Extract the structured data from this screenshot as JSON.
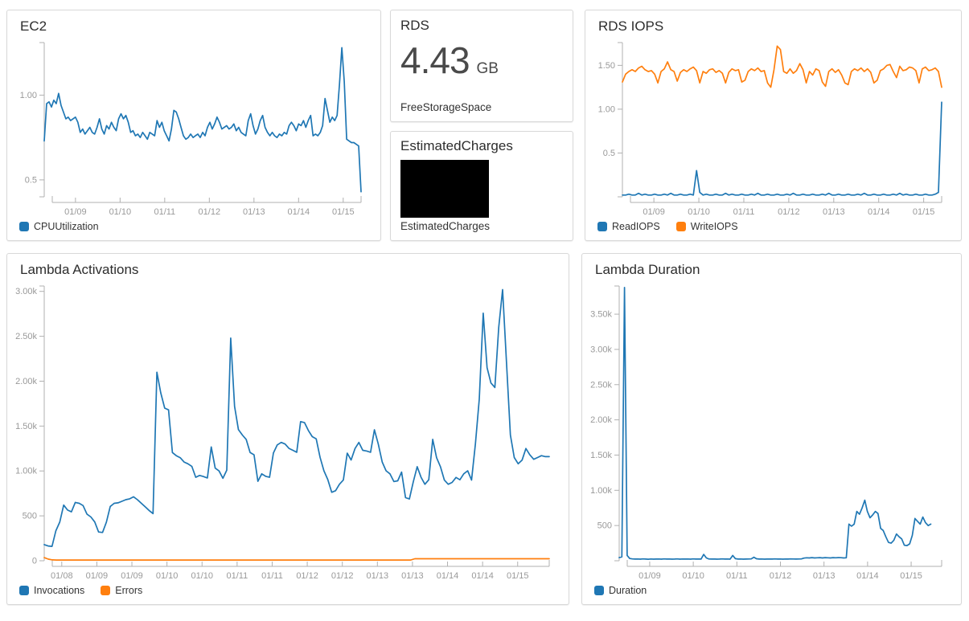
{
  "colors": {
    "blue": "#1f77b4",
    "orange": "#ff7f0e",
    "axis": "#b0b0b0",
    "tick_label": "#999999",
    "title": "#2d2d2d",
    "card_border": "#d8d8d8",
    "redacted_box": "#000000"
  },
  "cards": {
    "rds_metric": {
      "title": "RDS",
      "value": "4.43",
      "unit": "GB",
      "label": "FreeStorageSpace"
    },
    "estimated_charges": {
      "title": "EstimatedCharges",
      "label": "EstimatedCharges"
    }
  },
  "chart_data": [
    {
      "id": "ec2",
      "type": "line",
      "title": "EC2",
      "xlabel": "",
      "ylabel": "",
      "grid": false,
      "legend_position": "bottom-left",
      "x_domain": [
        0.3,
        7.4
      ],
      "ylim": [
        0.4,
        1.31
      ],
      "y_ticks": [
        {
          "v": 0.5,
          "label": "0.5"
        },
        {
          "v": 1.0,
          "label": "1.00"
        }
      ],
      "x_ticks": [
        {
          "v": 1,
          "label": "01/09"
        },
        {
          "v": 2,
          "label": "01/10"
        },
        {
          "v": 3,
          "label": "01/11"
        },
        {
          "v": 4,
          "label": "01/12"
        },
        {
          "v": 5,
          "label": "01/13"
        },
        {
          "v": 6,
          "label": "01/14"
        },
        {
          "v": 7,
          "label": "01/15"
        }
      ],
      "series": [
        {
          "name": "CPUUtilization",
          "color": "#1f77b4",
          "values": [
            0.73,
            0.95,
            0.96,
            0.93,
            0.97,
            0.95,
            1.01,
            0.94,
            0.9,
            0.86,
            0.87,
            0.85,
            0.86,
            0.87,
            0.84,
            0.78,
            0.8,
            0.77,
            0.79,
            0.81,
            0.78,
            0.77,
            0.81,
            0.86,
            0.8,
            0.77,
            0.82,
            0.8,
            0.84,
            0.81,
            0.79,
            0.86,
            0.89,
            0.86,
            0.88,
            0.84,
            0.78,
            0.79,
            0.76,
            0.77,
            0.75,
            0.78,
            0.76,
            0.74,
            0.78,
            0.77,
            0.76,
            0.85,
            0.81,
            0.84,
            0.79,
            0.76,
            0.73,
            0.8,
            0.91,
            0.9,
            0.86,
            0.81,
            0.76,
            0.74,
            0.75,
            0.77,
            0.75,
            0.76,
            0.77,
            0.75,
            0.78,
            0.76,
            0.81,
            0.84,
            0.8,
            0.83,
            0.87,
            0.84,
            0.8,
            0.81,
            0.82,
            0.8,
            0.81,
            0.83,
            0.79,
            0.81,
            0.78,
            0.77,
            0.76,
            0.85,
            0.89,
            0.82,
            0.77,
            0.8,
            0.85,
            0.88,
            0.81,
            0.78,
            0.76,
            0.78,
            0.76,
            0.75,
            0.77,
            0.76,
            0.78,
            0.77,
            0.82,
            0.84,
            0.82,
            0.79,
            0.83,
            0.82,
            0.85,
            0.81,
            0.85,
            0.88,
            0.76,
            0.77,
            0.76,
            0.78,
            0.82,
            0.98,
            0.91,
            0.84,
            0.87,
            0.85,
            0.88,
            1.06,
            1.28,
            1.08,
            0.74,
            0.73,
            0.72,
            0.72,
            0.71,
            0.7,
            0.43
          ]
        }
      ]
    },
    {
      "id": "rds_iops",
      "type": "line",
      "title": "RDS IOPS",
      "xlabel": "",
      "ylabel": "",
      "grid": false,
      "legend_position": "bottom-left",
      "x_domain": [
        0.3,
        7.4
      ],
      "ylim": [
        0,
        1.76
      ],
      "y_ticks": [
        {
          "v": 0.5,
          "label": "0.5"
        },
        {
          "v": 1.0,
          "label": "1.00"
        },
        {
          "v": 1.5,
          "label": "1.50"
        }
      ],
      "x_ticks": [
        {
          "v": 1,
          "label": "01/09"
        },
        {
          "v": 2,
          "label": "01/10"
        },
        {
          "v": 3,
          "label": "01/11"
        },
        {
          "v": 4,
          "label": "01/12"
        },
        {
          "v": 5,
          "label": "01/13"
        },
        {
          "v": 6,
          "label": "01/14"
        },
        {
          "v": 7,
          "label": "01/15"
        }
      ],
      "series": [
        {
          "name": "ReadIOPS",
          "color": "#1f77b4",
          "values": [
            0.02,
            0.02,
            0.03,
            0.02,
            0.02,
            0.04,
            0.02,
            0.03,
            0.02,
            0.02,
            0.03,
            0.02,
            0.02,
            0.03,
            0.02,
            0.04,
            0.02,
            0.02,
            0.03,
            0.02,
            0.02,
            0.03,
            0.02,
            0.3,
            0.05,
            0.02,
            0.03,
            0.02,
            0.02,
            0.03,
            0.02,
            0.02,
            0.04,
            0.02,
            0.03,
            0.02,
            0.02,
            0.03,
            0.02,
            0.02,
            0.03,
            0.02,
            0.04,
            0.02,
            0.02,
            0.03,
            0.02,
            0.02,
            0.03,
            0.02,
            0.02,
            0.03,
            0.02,
            0.04,
            0.02,
            0.02,
            0.03,
            0.02,
            0.02,
            0.03,
            0.02,
            0.02,
            0.03,
            0.02,
            0.04,
            0.02,
            0.02,
            0.03,
            0.02,
            0.02,
            0.03,
            0.02,
            0.02,
            0.03,
            0.02,
            0.04,
            0.02,
            0.02,
            0.03,
            0.02,
            0.02,
            0.03,
            0.02,
            0.02,
            0.03,
            0.02,
            0.04,
            0.02,
            0.03,
            0.02,
            0.02,
            0.03,
            0.02,
            0.02,
            0.03,
            0.02,
            0.02,
            0.03,
            0.05,
            1.08
          ]
        },
        {
          "name": "WriteIOPS",
          "color": "#ff7f0e",
          "values": [
            1.31,
            1.4,
            1.43,
            1.45,
            1.43,
            1.47,
            1.49,
            1.45,
            1.43,
            1.44,
            1.4,
            1.3,
            1.43,
            1.46,
            1.54,
            1.45,
            1.43,
            1.32,
            1.42,
            1.45,
            1.43,
            1.46,
            1.48,
            1.44,
            1.3,
            1.43,
            1.41,
            1.45,
            1.46,
            1.42,
            1.44,
            1.41,
            1.3,
            1.42,
            1.46,
            1.44,
            1.45,
            1.31,
            1.33,
            1.43,
            1.46,
            1.44,
            1.47,
            1.43,
            1.44,
            1.3,
            1.25,
            1.45,
            1.72,
            1.68,
            1.43,
            1.41,
            1.46,
            1.41,
            1.44,
            1.52,
            1.45,
            1.3,
            1.43,
            1.39,
            1.46,
            1.44,
            1.31,
            1.26,
            1.43,
            1.46,
            1.42,
            1.45,
            1.39,
            1.3,
            1.28,
            1.43,
            1.46,
            1.44,
            1.47,
            1.43,
            1.46,
            1.42,
            1.3,
            1.33,
            1.44,
            1.46,
            1.5,
            1.51,
            1.43,
            1.36,
            1.49,
            1.44,
            1.45,
            1.48,
            1.47,
            1.44,
            1.3,
            1.46,
            1.48,
            1.44,
            1.45,
            1.47,
            1.43,
            1.25
          ]
        }
      ]
    },
    {
      "id": "lambda_activations",
      "type": "line",
      "title": "Lambda Activations",
      "xlabel": "",
      "ylabel": "",
      "grid": false,
      "legend_position": "bottom-left",
      "x_domain": [
        0.25,
        7.45
      ],
      "ylim": [
        0,
        3060
      ],
      "y_ticks": [
        {
          "v": 0,
          "label": "0"
        },
        {
          "v": 500,
          "label": "500"
        },
        {
          "v": 1000,
          "label": "1.00k"
        },
        {
          "v": 1500,
          "label": "1.50k"
        },
        {
          "v": 2000,
          "label": "2.00k"
        },
        {
          "v": 2500,
          "label": "2.50k"
        },
        {
          "v": 3000,
          "label": "3.00k"
        }
      ],
      "x_ticks": [
        {
          "v": 0.5,
          "label": "01/08"
        },
        {
          "v": 1.0,
          "label": "01/09"
        },
        {
          "v": 1.5,
          "label": "01/09"
        },
        {
          "v": 2.0,
          "label": "01/10"
        },
        {
          "v": 2.5,
          "label": "01/10"
        },
        {
          "v": 3.0,
          "label": "01/11"
        },
        {
          "v": 3.5,
          "label": "01/11"
        },
        {
          "v": 4.0,
          "label": "01/12"
        },
        {
          "v": 4.5,
          "label": "01/12"
        },
        {
          "v": 5.0,
          "label": "01/13"
        },
        {
          "v": 5.5,
          "label": "01/13"
        },
        {
          "v": 6.0,
          "label": "01/14"
        },
        {
          "v": 6.5,
          "label": "01/14"
        },
        {
          "v": 7.0,
          "label": "01/15"
        }
      ],
      "series": [
        {
          "name": "Invocations",
          "color": "#1f77b4",
          "values": [
            180,
            165,
            160,
            335,
            430,
            620,
            565,
            545,
            650,
            640,
            615,
            520,
            488,
            432,
            320,
            315,
            430,
            605,
            640,
            645,
            662,
            680,
            690,
            712,
            680,
            640,
            600,
            560,
            525,
            2100,
            1870,
            1700,
            1680,
            1205,
            1170,
            1148,
            1100,
            1080,
            1050,
            930,
            950,
            938,
            922,
            1268,
            1032,
            1000,
            918,
            1008,
            2480,
            1720,
            1460,
            1400,
            1350,
            1205,
            1180,
            885,
            968,
            940,
            930,
            1200,
            1290,
            1318,
            1300,
            1252,
            1230,
            1208,
            1550,
            1538,
            1450,
            1382,
            1358,
            1152,
            1002,
            905,
            762,
            780,
            852,
            900,
            1198,
            1122,
            1250,
            1318,
            1230,
            1222,
            1208,
            1458,
            1300,
            1100,
            1002,
            968,
            882,
            890,
            988,
            702,
            688,
            878,
            1048,
            930,
            852,
            902,
            1352,
            1148,
            1048,
            898,
            852,
            872,
            928,
            902,
            968,
            1002,
            898,
            1302,
            1800,
            2758,
            2150,
            1980,
            1930,
            2600,
            3020,
            2200,
            1400,
            1150,
            1080,
            1120,
            1250,
            1180,
            1130,
            1150,
            1170,
            1160,
            1160
          ]
        },
        {
          "name": "Errors",
          "color": "#ff7f0e",
          "values": [
            35,
            18,
            10,
            8,
            8,
            8,
            8,
            8,
            8,
            8,
            8,
            8,
            8,
            8,
            8,
            8,
            8,
            8,
            8,
            8,
            8,
            8,
            8,
            8,
            8,
            8,
            8,
            8,
            8,
            8,
            8,
            8,
            8,
            8,
            8,
            8,
            8,
            8,
            8,
            8,
            8,
            8,
            8,
            8,
            8,
            8,
            8,
            8,
            8,
            8,
            8,
            8,
            8,
            8,
            8,
            8,
            8,
            8,
            8,
            8,
            8,
            8,
            8,
            8,
            8,
            8,
            8,
            8,
            8,
            8,
            8,
            8,
            8,
            8,
            8,
            8,
            8,
            8,
            8,
            8,
            8,
            8,
            8,
            8,
            8,
            8,
            8,
            8,
            8,
            8,
            8,
            22,
            22,
            22,
            22,
            22,
            22,
            22,
            22,
            22,
            22,
            22,
            22,
            22,
            22,
            22,
            22,
            22,
            22,
            22,
            22,
            22,
            22,
            22,
            22,
            22,
            22,
            22,
            22,
            22,
            22,
            22,
            22,
            22,
            22
          ]
        }
      ]
    },
    {
      "id": "lambda_duration",
      "type": "line",
      "title": "Lambda Duration",
      "xlabel": "",
      "ylabel": "",
      "grid": false,
      "legend_position": "bottom-left",
      "x_domain": [
        0.3,
        7.7
      ],
      "ylim": [
        0,
        3900
      ],
      "y_ticks": [
        {
          "v": 500,
          "label": "500"
        },
        {
          "v": 1000,
          "label": "1.00k"
        },
        {
          "v": 1500,
          "label": "1.50k"
        },
        {
          "v": 2000,
          "label": "2.00k"
        },
        {
          "v": 2500,
          "label": "2.50k"
        },
        {
          "v": 3000,
          "label": "3.00k"
        },
        {
          "v": 3500,
          "label": "3.50k"
        }
      ],
      "x_ticks": [
        {
          "v": 1,
          "label": "01/09"
        },
        {
          "v": 2,
          "label": "01/10"
        },
        {
          "v": 3,
          "label": "01/11"
        },
        {
          "v": 4,
          "label": "01/12"
        },
        {
          "v": 5,
          "label": "01/13"
        },
        {
          "v": 6,
          "label": "01/14"
        },
        {
          "v": 7,
          "label": "01/15"
        }
      ],
      "series": [
        {
          "name": "Duration",
          "color": "#1f77b4",
          "x_start": 0.3,
          "x_end": 7.45,
          "values": [
            45,
            55,
            3880,
            75,
            32,
            26,
            24,
            25,
            23,
            26,
            24,
            22,
            25,
            23,
            24,
            25,
            23,
            26,
            24,
            25,
            23,
            24,
            26,
            23,
            25,
            24,
            25,
            23,
            26,
            24,
            25,
            24,
            90,
            40,
            25,
            24,
            25,
            23,
            24,
            26,
            24,
            25,
            23,
            75,
            30,
            24,
            25,
            23,
            24,
            25,
            26,
            50,
            28,
            24,
            25,
            23,
            24,
            25,
            24,
            26,
            24,
            25,
            23,
            25,
            24,
            26,
            25,
            24,
            25,
            26,
            38,
            42,
            40,
            44,
            40,
            42,
            44,
            40,
            45,
            42,
            40,
            44,
            42,
            45,
            43,
            40,
            42,
            520,
            490,
            520,
            700,
            660,
            750,
            860,
            700,
            610,
            650,
            700,
            670,
            460,
            430,
            340,
            260,
            250,
            290,
            380,
            340,
            310,
            220,
            215,
            240,
            360,
            600,
            560,
            520,
            620,
            540,
            500,
            520
          ]
        }
      ]
    }
  ]
}
